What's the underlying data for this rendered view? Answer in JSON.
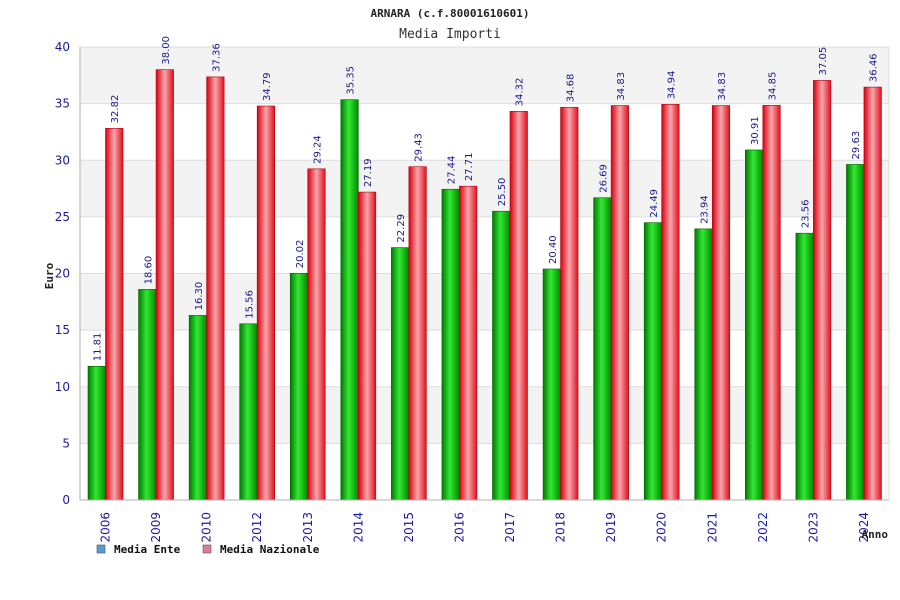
{
  "chart_data": {
    "type": "bar",
    "title": "ARNARA (c.f.80001610601)",
    "subtitle": "Media Importi",
    "xlabel": "Anno",
    "ylabel": "Euro",
    "ylim": [
      0,
      40
    ],
    "yticks": [
      0,
      5,
      10,
      15,
      20,
      25,
      30,
      35,
      40
    ],
    "categories": [
      "2006",
      "2009",
      "2010",
      "2012",
      "2013",
      "2014",
      "2015",
      "2016",
      "2017",
      "2018",
      "2019",
      "2020",
      "2021",
      "2022",
      "2023",
      "2024"
    ],
    "series": [
      {
        "name": "Media Ente",
        "color": "#00b400",
        "legend_color": "#5b9bd5",
        "values": [
          11.81,
          18.6,
          16.3,
          15.56,
          20.02,
          35.35,
          22.29,
          27.44,
          25.5,
          20.4,
          26.69,
          24.49,
          23.94,
          30.91,
          23.56,
          29.63
        ],
        "labels": [
          "11.81",
          "18.60",
          "16.30",
          "15.56",
          "20.02",
          "35.35",
          "22.29",
          "27.44",
          "25.50",
          "20.40",
          "26.69",
          "24.49",
          "23.94",
          "30.91",
          "23.56",
          "29.63"
        ]
      },
      {
        "name": "Media Nazionale",
        "color": "#e8101a",
        "legend_color": "#e07aa0",
        "values": [
          32.82,
          38.0,
          37.36,
          34.79,
          29.24,
          27.19,
          29.43,
          27.71,
          34.32,
          34.68,
          34.83,
          34.94,
          34.83,
          34.85,
          37.05,
          36.46
        ],
        "labels": [
          "32.82",
          "38.00",
          "37.36",
          "34.79",
          "29.24",
          "27.19",
          "29.43",
          "27.71",
          "34.32",
          "34.68",
          "34.83",
          "34.94",
          "34.83",
          "34.85",
          "37.05",
          "36.46"
        ]
      }
    ],
    "grid": true,
    "legend_position": "bottom-left"
  }
}
